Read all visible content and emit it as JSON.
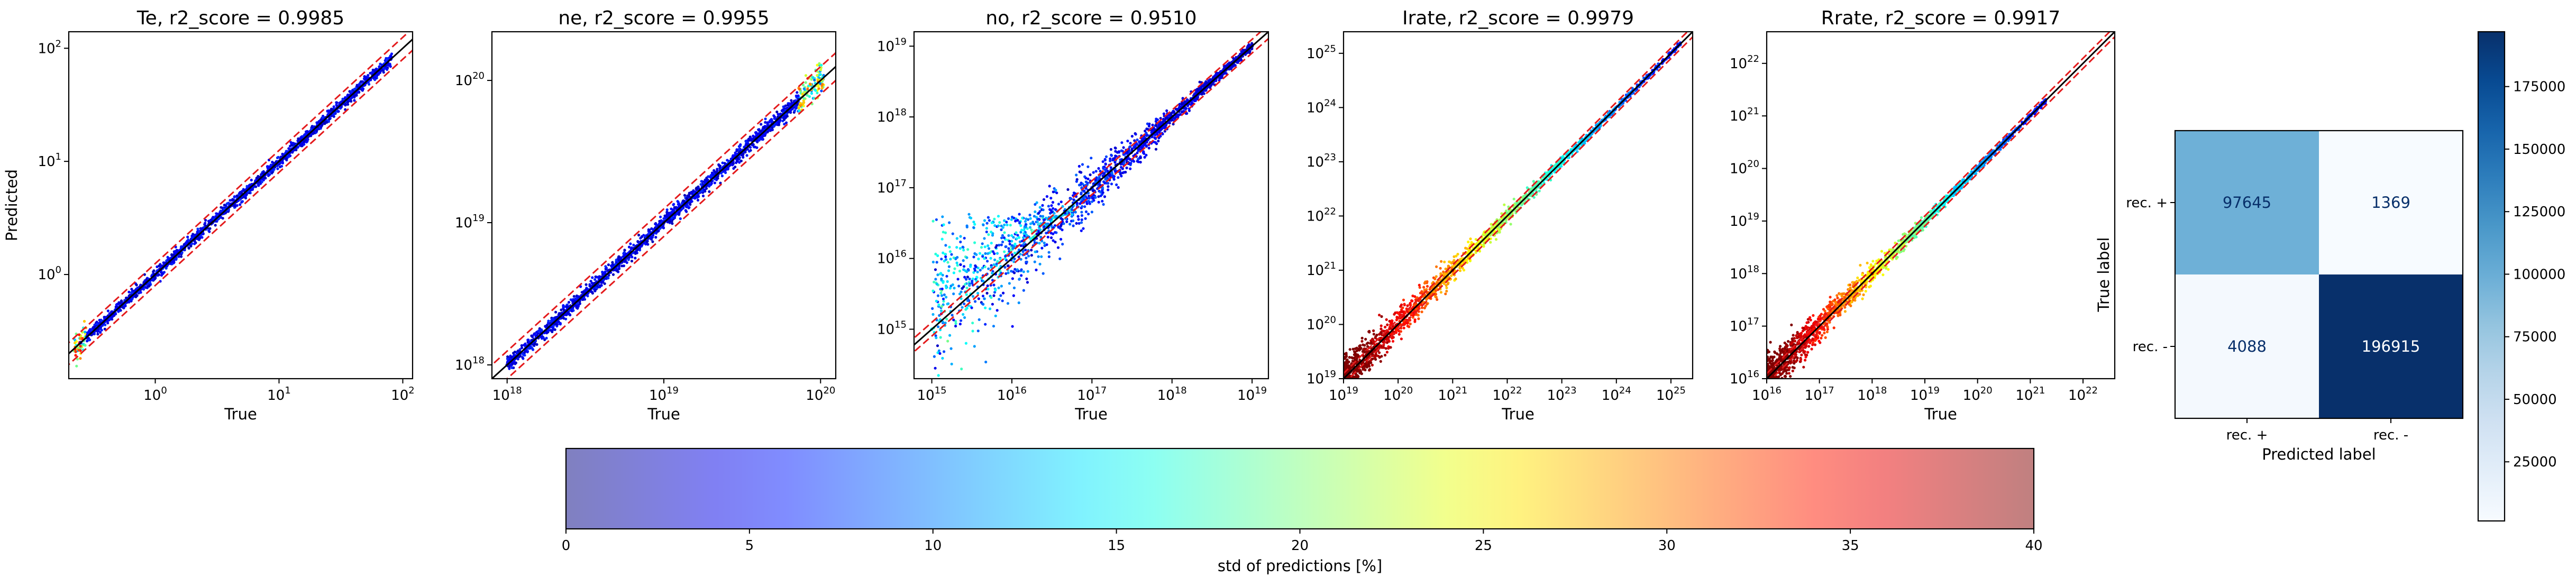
{
  "chart_data": [
    {
      "type": "scatter",
      "title": "Te, r2_score = 0.9985",
      "xlabel": "True",
      "ylabel": "Predicted",
      "scale": "log",
      "xlim": [
        0.2,
        120
      ],
      "ylim": [
        0.12,
        140
      ],
      "xticks": [
        {
          "base": "10",
          "exp": "0",
          "v": 1
        },
        {
          "base": "10",
          "exp": "1",
          "v": 10
        },
        {
          "base": "10",
          "exp": "2",
          "v": 100
        }
      ],
      "yticks": [
        {
          "base": "10",
          "exp": "0",
          "v": 1
        },
        {
          "base": "10",
          "exp": "1",
          "v": 10
        },
        {
          "base": "10",
          "exp": "2",
          "v": 100
        }
      ],
      "x_range": [
        0.22,
        82
      ],
      "bands": [
        0.8,
        1.25
      ],
      "color_mode": "blue_mostly",
      "points": [
        {
          "true": 0.25,
          "predicted": 0.25,
          "std_pct": 4
        },
        {
          "true": 1,
          "predicted": 1,
          "std_pct": 3
        },
        {
          "true": 10,
          "predicted": 10,
          "std_pct": 3
        },
        {
          "true": 80,
          "predicted": 80,
          "std_pct": 5
        }
      ]
    },
    {
      "type": "scatter",
      "title": "ne, r2_score = 0.9955",
      "xlabel": "True",
      "ylabel": "",
      "scale": "log",
      "xlim": [
        8e+17,
        1.25e+20
      ],
      "ylim": [
        8e+17,
        2.2e+20
      ],
      "xticks": [
        {
          "base": "10",
          "exp": "18",
          "v": 1e+18
        },
        {
          "base": "10",
          "exp": "19",
          "v": 1e+19
        },
        {
          "base": "10",
          "exp": "20",
          "v": 1e+20
        }
      ],
      "yticks": [
        {
          "base": "10",
          "exp": "18",
          "v": 1e+18
        },
        {
          "base": "10",
          "exp": "19",
          "v": 1e+19
        },
        {
          "base": "10",
          "exp": "20",
          "v": 1e+20
        }
      ],
      "x_range": [
        1e+18,
        1.05e+20
      ],
      "bands": [
        0.8,
        1.25
      ],
      "color_mode": "blue_mostly",
      "points": [
        {
          "true": 1e+18,
          "predicted": 1e+18,
          "std_pct": 3
        },
        {
          "true": 1e+19,
          "predicted": 1e+19,
          "std_pct": 3
        },
        {
          "true": 1e+20,
          "predicted": 1e+20,
          "std_pct": 25
        }
      ]
    },
    {
      "type": "scatter",
      "title": "no, r2_score = 0.9510",
      "xlabel": "True",
      "ylabel": "",
      "scale": "log",
      "xlim": [
        600000000000000.0,
        1.6e+19
      ],
      "ylim": [
        200000000000000.0,
        1.6e+19
      ],
      "xticks": [
        {
          "base": "10",
          "exp": "15",
          "v": 1000000000000000.0
        },
        {
          "base": "10",
          "exp": "16",
          "v": 1e+16
        },
        {
          "base": "10",
          "exp": "17",
          "v": 1e+17
        },
        {
          "base": "10",
          "exp": "18",
          "v": 1e+18
        },
        {
          "base": "10",
          "exp": "19",
          "v": 1e+19
        }
      ],
      "yticks": [
        {
          "base": "10",
          "exp": "15",
          "v": 1000000000000000.0
        },
        {
          "base": "10",
          "exp": "16",
          "v": 1e+16
        },
        {
          "base": "10",
          "exp": "17",
          "v": 1e+17
        },
        {
          "base": "10",
          "exp": "18",
          "v": 1e+18
        },
        {
          "base": "10",
          "exp": "19",
          "v": 1e+19
        }
      ],
      "x_range": [
        1000000000000000.0,
        1e+19
      ],
      "bands": [
        0.8,
        1.25
      ],
      "color_mode": "spread",
      "points": [
        {
          "true": 1000000000000000.0,
          "predicted": 1000000000000000.0,
          "std_pct": 15
        },
        {
          "true": 1e+16,
          "predicted": 1e+16,
          "std_pct": 12
        },
        {
          "true": 1e+17,
          "predicted": 1e+17,
          "std_pct": 6
        },
        {
          "true": 1e+19,
          "predicted": 1e+19,
          "std_pct": 3
        }
      ]
    },
    {
      "type": "scatter",
      "title": "Irate, r2_score = 0.9979",
      "xlabel": "True",
      "ylabel": "",
      "scale": "log",
      "xlim": [
        1e+19,
        2.5e+25
      ],
      "ylim": [
        1e+19,
        2.5e+25
      ],
      "xticks": [
        {
          "base": "10",
          "exp": "19",
          "v": 1e+19
        },
        {
          "base": "10",
          "exp": "20",
          "v": 1e+20
        },
        {
          "base": "10",
          "exp": "21",
          "v": 1e+21
        },
        {
          "base": "10",
          "exp": "22",
          "v": 1e+22
        },
        {
          "base": "10",
          "exp": "23",
          "v": 1e+23
        },
        {
          "base": "10",
          "exp": "24",
          "v": 1e+24
        },
        {
          "base": "10",
          "exp": "25",
          "v": 1e+25
        }
      ],
      "yticks": [
        {
          "base": "10",
          "exp": "19",
          "v": 1e+19
        },
        {
          "base": "10",
          "exp": "20",
          "v": 1e+20
        },
        {
          "base": "10",
          "exp": "21",
          "v": 1e+21
        },
        {
          "base": "10",
          "exp": "22",
          "v": 1e+22
        },
        {
          "base": "10",
          "exp": "23",
          "v": 1e+23
        },
        {
          "base": "10",
          "exp": "24",
          "v": 1e+24
        },
        {
          "base": "10",
          "exp": "25",
          "v": 1e+25
        }
      ],
      "x_range": [
        1e+19,
        1.5e+25
      ],
      "bands": [
        0.8,
        1.25
      ],
      "color_mode": "red_low",
      "points": [
        {
          "true": 1e+19,
          "predicted": 1e+19,
          "std_pct": 40
        },
        {
          "true": 1e+21,
          "predicted": 1e+21,
          "std_pct": 35
        },
        {
          "true": 1e+22,
          "predicted": 1e+22,
          "std_pct": 25
        },
        {
          "true": 1e+25,
          "predicted": 1e+25,
          "std_pct": 5
        }
      ]
    },
    {
      "type": "scatter",
      "title": "Rrate, r2_score = 0.9917",
      "xlabel": "True",
      "ylabel": "",
      "scale": "log",
      "xlim": [
        1e+16,
        4e+22
      ],
      "ylim": [
        1e+16,
        4e+22
      ],
      "xticks": [
        {
          "base": "10",
          "exp": "16",
          "v": 1e+16
        },
        {
          "base": "10",
          "exp": "17",
          "v": 1e+17
        },
        {
          "base": "10",
          "exp": "18",
          "v": 1e+18
        },
        {
          "base": "10",
          "exp": "19",
          "v": 1e+19
        },
        {
          "base": "10",
          "exp": "20",
          "v": 1e+20
        },
        {
          "base": "10",
          "exp": "21",
          "v": 1e+21
        },
        {
          "base": "10",
          "exp": "22",
          "v": 1e+22
        }
      ],
      "yticks": [
        {
          "base": "10",
          "exp": "16",
          "v": 1e+16
        },
        {
          "base": "10",
          "exp": "17",
          "v": 1e+17
        },
        {
          "base": "10",
          "exp": "18",
          "v": 1e+18
        },
        {
          "base": "10",
          "exp": "19",
          "v": 1e+19
        },
        {
          "base": "10",
          "exp": "20",
          "v": 1e+20
        },
        {
          "base": "10",
          "exp": "21",
          "v": 1e+21
        },
        {
          "base": "10",
          "exp": "22",
          "v": 1e+22
        }
      ],
      "x_range": [
        1e+16,
        2e+21
      ],
      "bands": [
        0.8,
        1.25
      ],
      "color_mode": "red_low",
      "points": [
        {
          "true": 1e+16,
          "predicted": 1e+16,
          "std_pct": 40
        },
        {
          "true": 1e+18,
          "predicted": 1e+18,
          "std_pct": 35
        },
        {
          "true": 1e+19,
          "predicted": 1e+19,
          "std_pct": 20
        },
        {
          "true": 1e+21,
          "predicted": 1e+21,
          "std_pct": 5
        }
      ]
    },
    {
      "type": "heatmap",
      "title": "",
      "xlabel": "Predicted label",
      "ylabel": "True label",
      "x_categories": [
        "rec. +",
        "rec. -"
      ],
      "y_categories": [
        "rec. +",
        "rec. -"
      ],
      "values": [
        [
          97645,
          1369
        ],
        [
          4088,
          196915
        ]
      ],
      "cells": [
        [
          "97645",
          "1369"
        ],
        [
          "4088",
          "196915"
        ]
      ],
      "colorbar": {
        "range": [
          1369,
          196915
        ],
        "ticks": [
          25000,
          50000,
          75000,
          100000,
          125000,
          150000,
          175000
        ],
        "tick_labels": [
          "25000",
          "50000",
          "75000",
          "100000",
          "125000",
          "150000",
          "175000"
        ],
        "colormap": "Blues"
      }
    }
  ],
  "colorbar_std": {
    "label": "std of predictions [%]",
    "range": [
      0,
      40
    ],
    "ticks": [
      0,
      5,
      10,
      15,
      20,
      25,
      30,
      35,
      40
    ],
    "tick_labels": [
      "0",
      "5",
      "10",
      "15",
      "20",
      "25",
      "30",
      "35",
      "40"
    ],
    "colormap": "jet"
  },
  "colors": {
    "band_line": "#e41a1c",
    "identity_line": "#000000",
    "ridge": "#e60000",
    "blues_light": "#f7fbff",
    "blues_dark": "#08306b"
  }
}
